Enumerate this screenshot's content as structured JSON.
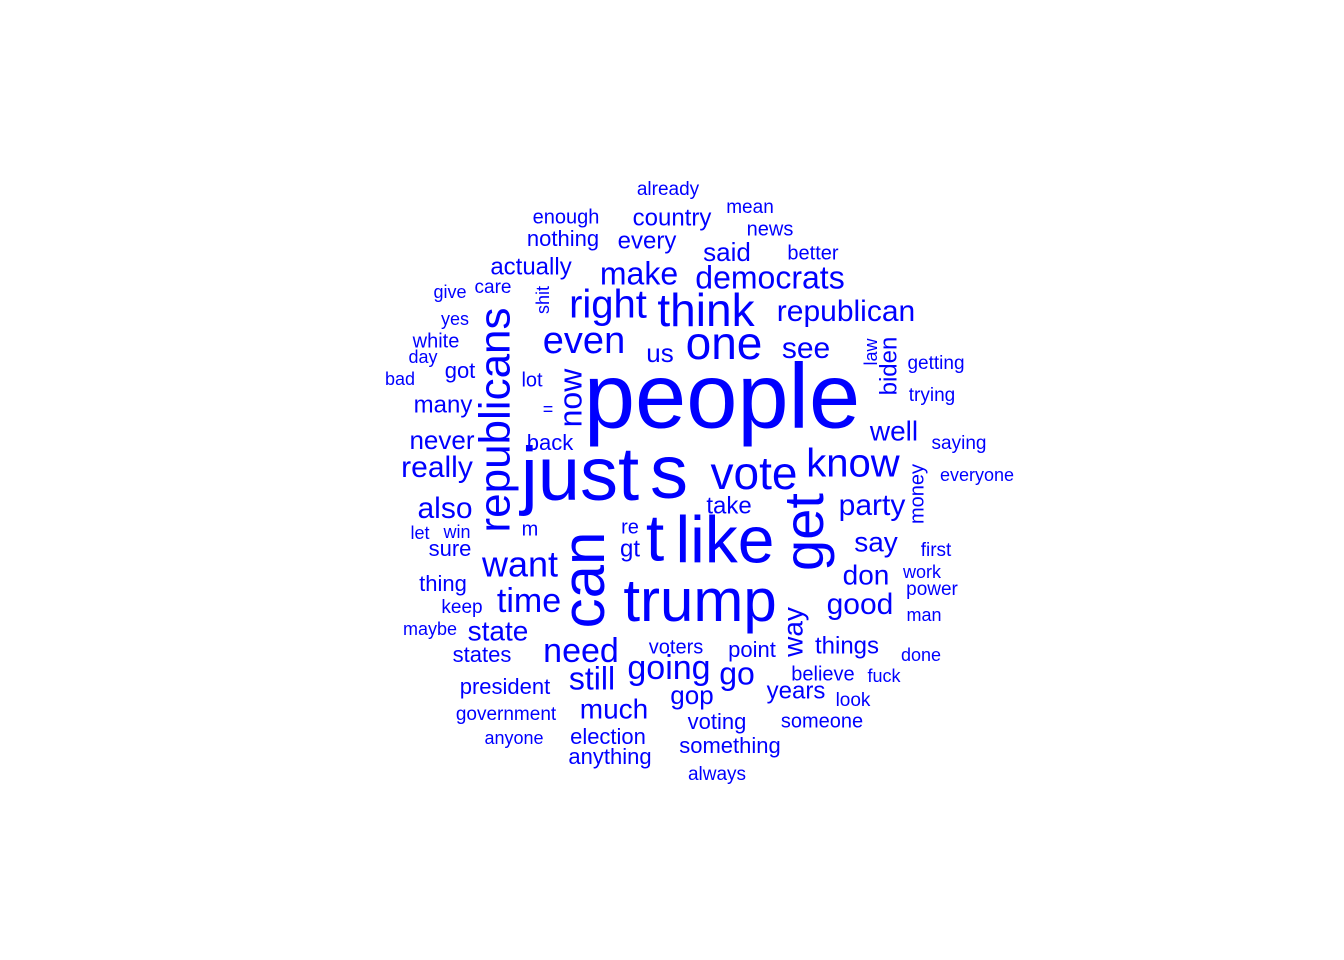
{
  "word_cloud": {
    "color": "#0000ff",
    "words": [
      {
        "text": "people",
        "weight": 92
      },
      {
        "text": "just",
        "weight": 76
      },
      {
        "text": "s",
        "weight": 76
      },
      {
        "text": "t",
        "weight": 66
      },
      {
        "text": "like",
        "weight": 66
      },
      {
        "text": "trump",
        "weight": 60
      },
      {
        "text": "can",
        "weight": 60
      },
      {
        "text": "get",
        "weight": 56
      },
      {
        "text": "republicans",
        "weight": 44
      },
      {
        "text": "vote",
        "weight": 46
      },
      {
        "text": "think",
        "weight": 46
      },
      {
        "text": "one",
        "weight": 46
      },
      {
        "text": "know",
        "weight": 40
      },
      {
        "text": "right",
        "weight": 40
      },
      {
        "text": "even",
        "weight": 38
      },
      {
        "text": "want",
        "weight": 36
      },
      {
        "text": "time",
        "weight": 34
      },
      {
        "text": "going",
        "weight": 34
      },
      {
        "text": "need",
        "weight": 34
      },
      {
        "text": "democrats",
        "weight": 32
      },
      {
        "text": "now",
        "weight": 32
      },
      {
        "text": "make",
        "weight": 32
      },
      {
        "text": "republican",
        "weight": 30
      },
      {
        "text": "go",
        "weight": 32
      },
      {
        "text": "still",
        "weight": 32
      },
      {
        "text": "really",
        "weight": 30
      },
      {
        "text": "party",
        "weight": 30
      },
      {
        "text": "good",
        "weight": 30
      },
      {
        "text": "see",
        "weight": 30
      },
      {
        "text": "much",
        "weight": 28
      },
      {
        "text": "also",
        "weight": 30
      },
      {
        "text": "way",
        "weight": 28
      },
      {
        "text": "say",
        "weight": 28
      },
      {
        "text": "well",
        "weight": 28
      },
      {
        "text": "don",
        "weight": 28
      },
      {
        "text": "state",
        "weight": 28
      },
      {
        "text": "never",
        "weight": 26
      },
      {
        "text": "us",
        "weight": 26
      },
      {
        "text": "actually",
        "weight": 24
      },
      {
        "text": "country",
        "weight": 24
      },
      {
        "text": "said",
        "weight": 26
      },
      {
        "text": "years",
        "weight": 24
      },
      {
        "text": "gop",
        "weight": 26
      },
      {
        "text": "many",
        "weight": 24
      },
      {
        "text": "every",
        "weight": 24
      },
      {
        "text": "things",
        "weight": 24
      },
      {
        "text": "gt",
        "weight": 24
      },
      {
        "text": "biden",
        "weight": 24
      },
      {
        "text": "take",
        "weight": 24
      },
      {
        "text": "president",
        "weight": 22
      },
      {
        "text": "election",
        "weight": 22
      },
      {
        "text": "something",
        "weight": 22
      },
      {
        "text": "voting",
        "weight": 22
      },
      {
        "text": "point",
        "weight": 22
      },
      {
        "text": "thing",
        "weight": 22
      },
      {
        "text": "states",
        "weight": 22
      },
      {
        "text": "anything",
        "weight": 22
      },
      {
        "text": "sure",
        "weight": 22
      },
      {
        "text": "nothing",
        "weight": 22
      },
      {
        "text": "back",
        "weight": 22
      },
      {
        "text": "got",
        "weight": 22
      },
      {
        "text": "someone",
        "weight": 20
      },
      {
        "text": "believe",
        "weight": 20
      },
      {
        "text": "voters",
        "weight": 20
      },
      {
        "text": "enough",
        "weight": 20
      },
      {
        "text": "better",
        "weight": 20
      },
      {
        "text": "news",
        "weight": 20
      },
      {
        "text": "money",
        "weight": 20
      },
      {
        "text": "re",
        "weight": 20
      },
      {
        "text": "lot",
        "weight": 20
      },
      {
        "text": "m",
        "weight": 20
      },
      {
        "text": "white",
        "weight": 20
      },
      {
        "text": "keep",
        "weight": 19
      },
      {
        "text": "government",
        "weight": 19
      },
      {
        "text": "power",
        "weight": 19
      },
      {
        "text": "first",
        "weight": 19
      },
      {
        "text": "always",
        "weight": 19
      },
      {
        "text": "care",
        "weight": 19
      },
      {
        "text": "mean",
        "weight": 19
      },
      {
        "text": "already",
        "weight": 19
      },
      {
        "text": "look",
        "weight": 19
      },
      {
        "text": "getting",
        "weight": 19
      },
      {
        "text": "saying",
        "weight": 19
      },
      {
        "text": "trying",
        "weight": 19
      },
      {
        "text": "everyone",
        "weight": 18
      },
      {
        "text": "shit",
        "weight": 18
      },
      {
        "text": "law",
        "weight": 18
      },
      {
        "text": "win",
        "weight": 18
      },
      {
        "text": "let",
        "weight": 18
      },
      {
        "text": "yes",
        "weight": 18
      },
      {
        "text": "man",
        "weight": 18
      },
      {
        "text": "work",
        "weight": 18
      },
      {
        "text": "fuck",
        "weight": 18
      },
      {
        "text": "done",
        "weight": 18
      },
      {
        "text": "maybe",
        "weight": 18
      },
      {
        "text": "anyone",
        "weight": 18
      },
      {
        "text": "give",
        "weight": 18
      },
      {
        "text": "day",
        "weight": 18
      },
      {
        "text": "bad",
        "weight": 18
      },
      {
        "text": "=",
        "weight": 18
      }
    ]
  }
}
